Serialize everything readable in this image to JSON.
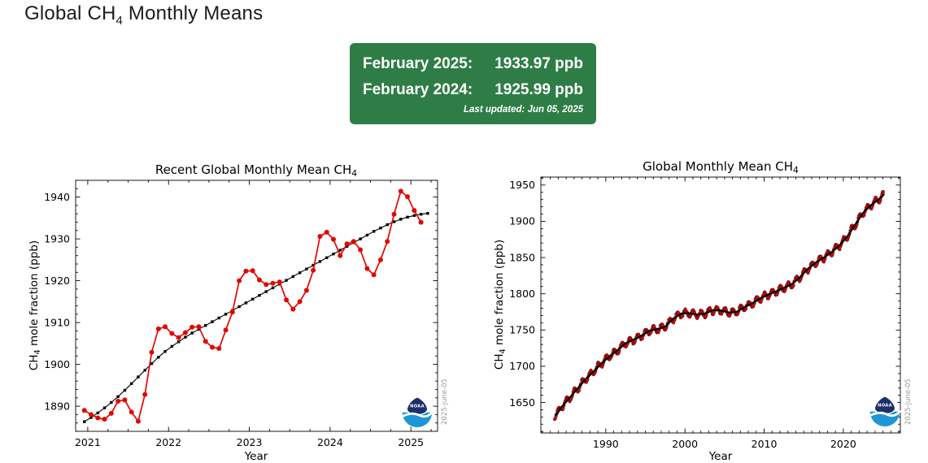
{
  "page": {
    "title": {
      "pre": "Global CH",
      "sub": "4",
      "post": " Monthly Means"
    }
  },
  "summary_box": {
    "bg_color": "#2e7d46",
    "text_color": "#ffffff",
    "rows": [
      {
        "label": "February 2025:",
        "value": "1933.97 ppb"
      },
      {
        "label": "February 2024:",
        "value": "1925.99 ppb"
      }
    ],
    "last_updated": "Last updated: Jun 05, 2025"
  },
  "watermark": "2025-june-05",
  "logo": {
    "text": "NOAA",
    "navy": "#1c2e6b",
    "light_blue": "#1e95d4"
  },
  "chart_data": [
    {
      "id": "recent",
      "type": "line",
      "title": {
        "pre": "Recent Global Monthly Mean CH",
        "sub": "4",
        "post": ""
      },
      "xlabel": "Year",
      "ylabel": {
        "pre": "CH",
        "sub": "4",
        "post": " mole fraction (ppb)"
      },
      "xlim": [
        2020.85,
        2025.33
      ],
      "ylim": [
        1884,
        1944
      ],
      "xticks": [
        2021,
        2022,
        2023,
        2024,
        2025
      ],
      "xminor_step": 0.25,
      "yticks": [
        1890,
        1900,
        1910,
        1920,
        1930,
        1940
      ],
      "yminor_step": 2,
      "grid": false,
      "legend": "none",
      "series": [
        {
          "name": "trend",
          "color": "#000000",
          "marker": "square",
          "marker_size": 1.7,
          "line_width": 1.1,
          "x_start": 2020.958,
          "x_step": 0.083333,
          "values": [
            1886.3,
            1887.3,
            1888.4,
            1889.6,
            1890.9,
            1892.3,
            1893.8,
            1895.4,
            1897.0,
            1898.6,
            1900.2,
            1901.7,
            1903.1,
            1904.3,
            1905.4,
            1906.5,
            1907.5,
            1908.4,
            1909.3,
            1910.2,
            1911.1,
            1912.0,
            1912.9,
            1913.8,
            1914.7,
            1915.6,
            1916.5,
            1917.4,
            1918.3,
            1919.2,
            1920.1,
            1921.0,
            1921.9,
            1922.8,
            1923.7,
            1924.6,
            1925.5,
            1926.4,
            1927.3,
            1928.2,
            1929.1,
            1930.0,
            1930.9,
            1931.8,
            1932.6,
            1933.4,
            1934.1,
            1934.7,
            1935.2,
            1935.6,
            1935.9,
            1936.1
          ]
        },
        {
          "name": "monthly_mean",
          "color": "#e10600",
          "marker": "circle",
          "marker_size": 3.0,
          "line_width": 1.7,
          "x_start": 2020.958,
          "x_step": 0.083333,
          "values": [
            1889.0,
            1888.0,
            1887.2,
            1886.9,
            1888.3,
            1891.2,
            1891.5,
            1888.6,
            1886.4,
            1892.8,
            1902.9,
            1908.5,
            1909.0,
            1907.4,
            1906.4,
            1907.6,
            1908.9,
            1909.0,
            1905.5,
            1904.1,
            1903.8,
            1908.2,
            1912.5,
            1920.0,
            1922.3,
            1922.4,
            1920.2,
            1919.1,
            1919.4,
            1919.7,
            1915.4,
            1913.2,
            1915.0,
            1917.7,
            1922.5,
            1930.6,
            1931.6,
            1929.9,
            1925.99,
            1928.8,
            1929.4,
            1927.4,
            1922.9,
            1921.4,
            1925.0,
            1929.4,
            1935.9,
            1941.4,
            1940.1,
            1936.8,
            1933.97
          ]
        }
      ]
    },
    {
      "id": "full_record",
      "type": "scatter",
      "title": {
        "pre": "Global Monthly Mean CH",
        "sub": "4",
        "post": ""
      },
      "xlabel": "Year",
      "ylabel": {
        "pre": "CH",
        "sub": "4",
        "post": " mole fraction (ppb)"
      },
      "xlim": [
        1981.8,
        2027.2
      ],
      "ylim": [
        1608,
        1961
      ],
      "xticks": [
        1990,
        2000,
        2010,
        2020
      ],
      "xminor_step": 1,
      "yticks": [
        1650,
        1700,
        1750,
        1800,
        1850,
        1900,
        1950
      ],
      "yminor_step": 10,
      "grid": false,
      "legend": "none",
      "monthly": {
        "color": "#cf1010",
        "edge": "#5d0000",
        "dot_radius": 1.8,
        "line_width": 0.9,
        "start": 1983.542,
        "end": 2025.125,
        "seasonal_amplitude_ppb": 5.0,
        "seasonal_peak_phase": 0.04,
        "noise_ppb": 1.1
      },
      "trend": {
        "color": "#000000",
        "line_width": 2.3,
        "anchor_x": [
          1983.75,
          1984.5,
          1985.5,
          1986.5,
          1987.5,
          1988.5,
          1989.5,
          1990.5,
          1991.5,
          1992.5,
          1993.5,
          1994.5,
          1995.5,
          1996.5,
          1997.5,
          1998.5,
          1999.5,
          2000.5,
          2001.5,
          2002.5,
          2003.5,
          2004.5,
          2005.5,
          2006.5,
          2007.5,
          2008.5,
          2009.5,
          2010.5,
          2011.5,
          2012.5,
          2013.5,
          2014.5,
          2015.5,
          2016.5,
          2017.5,
          2018.5,
          2019.5,
          2020.5,
          2021.5,
          2022.5,
          2023.5,
          2024.5,
          2025.1
        ],
        "anchor_y": [
          1633.0,
          1644.9,
          1657.3,
          1670.1,
          1682.7,
          1693.2,
          1704.5,
          1714.0,
          1722.2,
          1731.8,
          1736.5,
          1742.1,
          1748.9,
          1751.3,
          1754.5,
          1765.6,
          1772.3,
          1773.3,
          1771.2,
          1772.7,
          1777.3,
          1777.0,
          1774.2,
          1774.9,
          1781.4,
          1787.0,
          1793.6,
          1798.9,
          1803.1,
          1808.0,
          1813.3,
          1822.5,
          1834.2,
          1843.0,
          1849.6,
          1857.3,
          1866.6,
          1878.9,
          1895.3,
          1911.8,
          1922.4,
          1930.5,
          1937.0
        ]
      }
    }
  ]
}
